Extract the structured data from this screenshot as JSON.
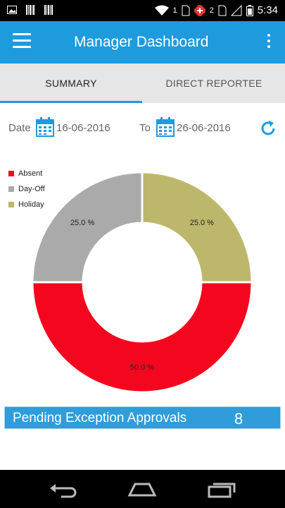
{
  "status_bar": {
    "time": "5:34",
    "sim1": "1",
    "sim2": "2"
  },
  "app_bar": {
    "title": "Manager Dashboard",
    "color": "#1E9BDD"
  },
  "tabs": [
    {
      "label": "SUMMARY",
      "active": true
    },
    {
      "label": "DIRECT REPORTEE",
      "active": false
    }
  ],
  "date_filter": {
    "from_label": "Date",
    "from_value": "16-06-2016",
    "to_label": "To",
    "to_value": "26-06-2016"
  },
  "chart_data": {
    "type": "pie",
    "style": "donut",
    "legend_position": "top-left",
    "categories": [
      "Absent",
      "Day-Off",
      "Holiday"
    ],
    "values": [
      50.0,
      25.0,
      25.0
    ],
    "labels": [
      "50.0 %",
      "25.0 %",
      "25.0 %"
    ],
    "colors": [
      "#F5061F",
      "#AAAAAA",
      "#BDB76B"
    ]
  },
  "pending": {
    "label": "Pending Exception Approvals",
    "count": "8"
  }
}
